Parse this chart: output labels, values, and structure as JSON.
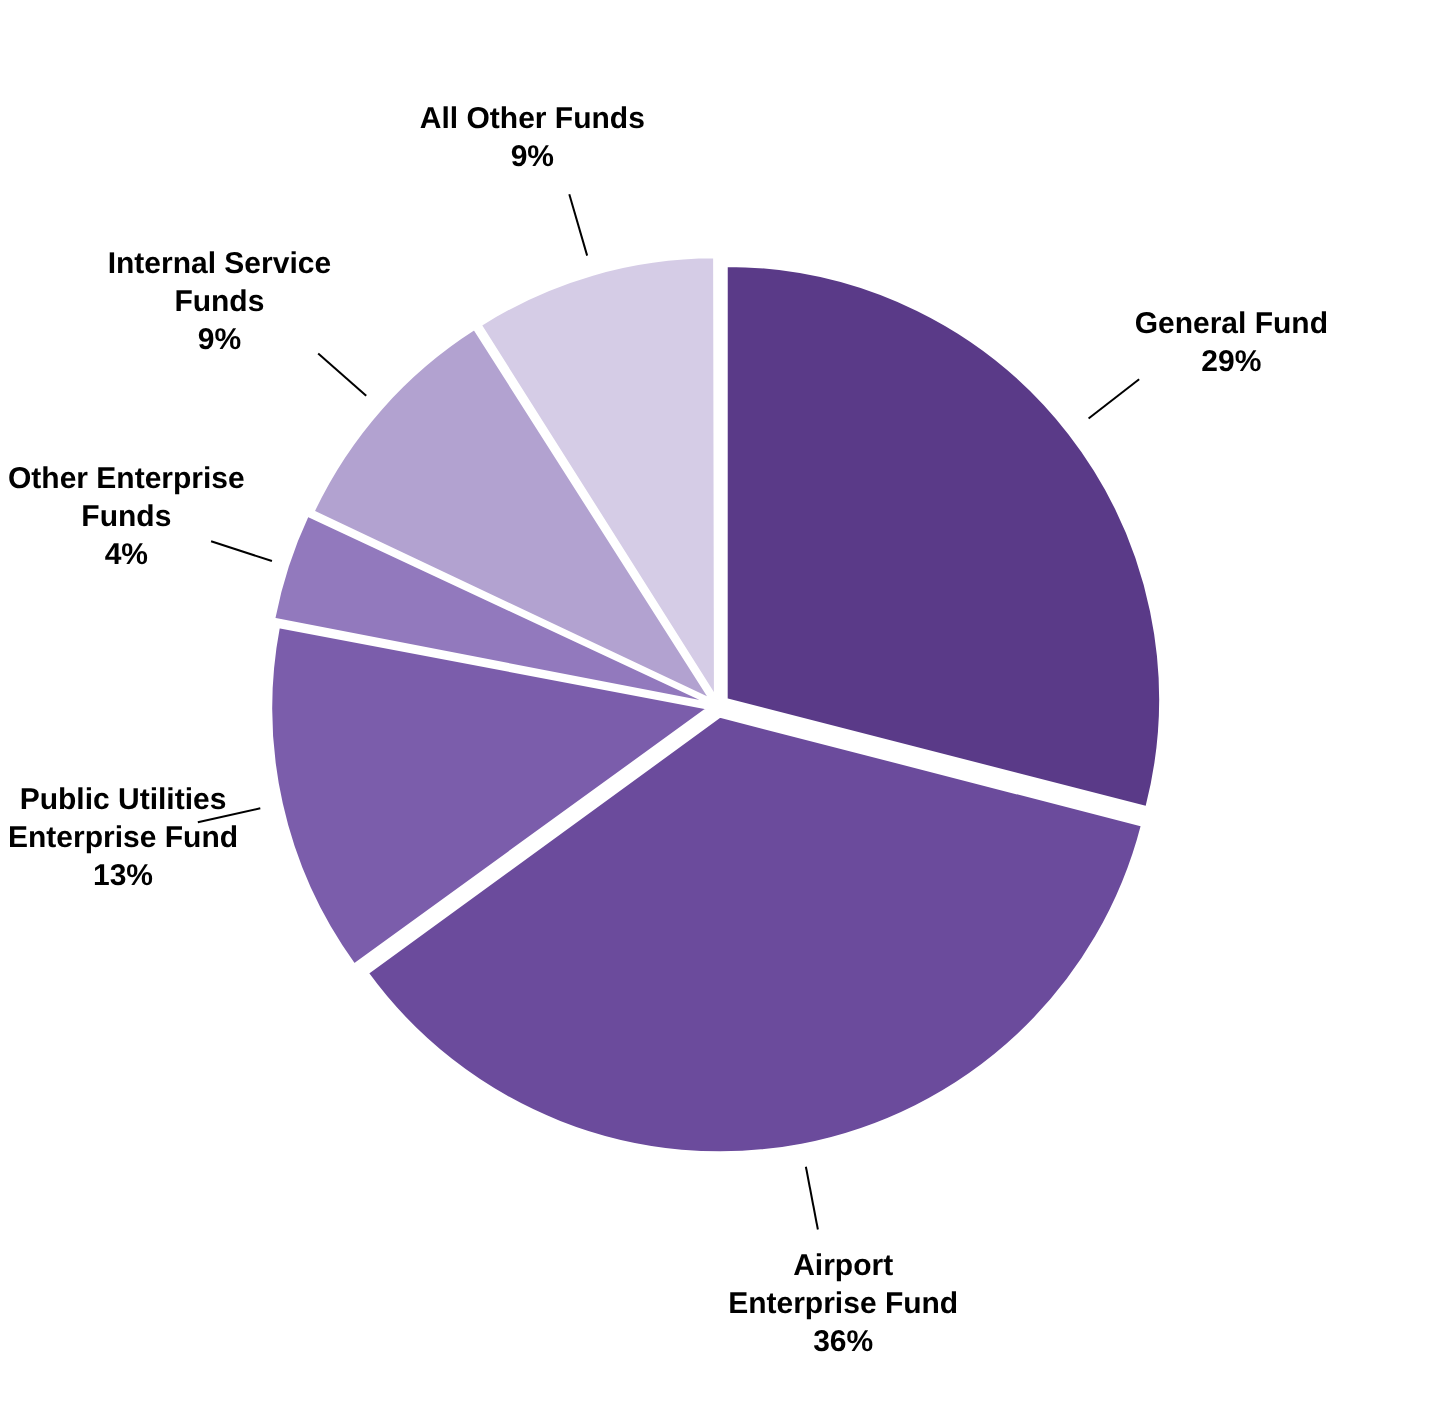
{
  "chart_data": {
    "type": "pie",
    "categories": [
      "General Fund",
      "Airport Enterprise Fund",
      "Public Utilities Enterprise Fund",
      "Other Enterprise Funds",
      "Internal Service Funds",
      "All Other Funds"
    ],
    "values": [
      29,
      36,
      13,
      4,
      9,
      9
    ],
    "colors": [
      "#5a3a88",
      "#6b4b9c",
      "#7b5dab",
      "#9279bd",
      "#b2a2d0",
      "#d5cce6"
    ],
    "value_labels": [
      "29%",
      "36%",
      "13%",
      "4%",
      "9%",
      "9%"
    ],
    "legend": false
  }
}
